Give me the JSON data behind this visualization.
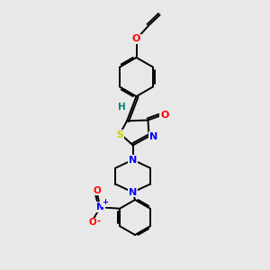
{
  "background_color": "#e8e8e8",
  "atom_colors": {
    "C": "#000000",
    "N": "#0000ff",
    "O": "#ff0000",
    "S": "#cccc00",
    "H": "#008080"
  },
  "bond_color": "#000000",
  "figsize": [
    3.0,
    3.0
  ],
  "dpi": 100,
  "xlim": [
    0,
    10
  ],
  "ylim": [
    0,
    10
  ]
}
